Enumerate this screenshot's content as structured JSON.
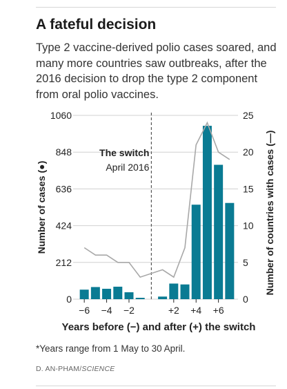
{
  "title": "A fateful decision",
  "subtitle": "Type 2 vaccine-derived polio cases soared, and many more countries saw outbreaks, after the 2016 decision to drop the type 2 component from oral polio vaccines.",
  "footnote": "*Years range from 1 May to 30 April.",
  "credit_author": "D. AN-PHAM/",
  "credit_source": "SCIENCE",
  "chart_data": {
    "type": "bar",
    "x": [
      -6,
      -5,
      -4,
      -3,
      -2,
      -1,
      1,
      2,
      3,
      4,
      5,
      6,
      7
    ],
    "series": [
      {
        "name": "Number of cases",
        "type": "bar",
        "axis": "left",
        "values": [
          55,
          70,
          60,
          72,
          40,
          8,
          15,
          90,
          85,
          545,
          1000,
          775,
          555
        ]
      },
      {
        "name": "Number of countries with cases",
        "type": "line",
        "axis": "right",
        "values": [
          7,
          6,
          6,
          5,
          5,
          3,
          4,
          3,
          7,
          21,
          24,
          20,
          19
        ]
      }
    ],
    "xlabel": "Years before (−) and after (+) the switch",
    "ylabel_left": "Number of cases (●)",
    "ylabel_right": "Number of countries with cases (—)",
    "ylim_left": [
      0,
      1060
    ],
    "yticks_left": [
      "0",
      "212",
      "424",
      "636",
      "848",
      "1060"
    ],
    "ylim_right": [
      0,
      25
    ],
    "yticks_right": [
      "0",
      "5",
      "10",
      "15",
      "20",
      "25"
    ],
    "xticks": [
      {
        "x": -6,
        "label": "−6"
      },
      {
        "x": -4,
        "label": "−4"
      },
      {
        "x": -2,
        "label": "−2"
      },
      {
        "x": 2,
        "label": "+2"
      },
      {
        "x": 4,
        "label": "+4"
      },
      {
        "x": 6,
        "label": "+6"
      }
    ],
    "annotation": {
      "title": "The switch",
      "date": "April 2016"
    },
    "grid": true,
    "colors": {
      "bars": "#0a7b93",
      "line": "#a8a8a8",
      "grid": "#d0d0d0",
      "switch_line": "#555555"
    }
  }
}
